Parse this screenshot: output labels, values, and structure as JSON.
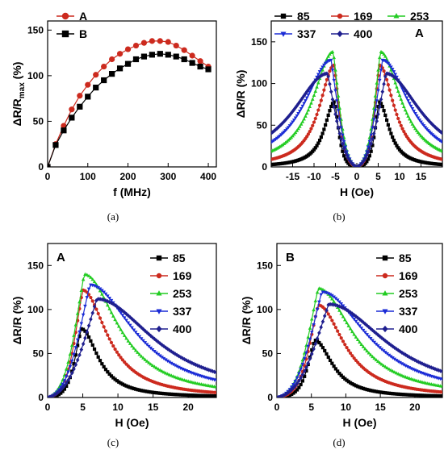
{
  "chart_data": [
    {
      "type": "line",
      "caption": "(a)",
      "xlabel": "f (MHz)",
      "ylabel_main": "ΔR/R",
      "ylabel_sub": "max",
      "ylabel_tail": " (%)",
      "xlim": [
        0,
        420
      ],
      "ylim": [
        0,
        160
      ],
      "xticks": [
        0,
        100,
        200,
        300,
        400
      ],
      "yticks": [
        0,
        50,
        100,
        150
      ],
      "legend_position": "top-left",
      "series": [
        {
          "name": "A",
          "color": "#cc2a1e",
          "marker": "circle",
          "x": [
            0,
            20,
            40,
            60,
            80,
            100,
            120,
            140,
            160,
            180,
            200,
            220,
            240,
            260,
            280,
            300,
            320,
            340,
            360,
            380,
            400
          ],
          "y": [
            0,
            25,
            45,
            63,
            78,
            90,
            101,
            110,
            118,
            124,
            129,
            133,
            136,
            138,
            138,
            137,
            133,
            128,
            122,
            116,
            110
          ]
        },
        {
          "name": "B",
          "color": "#000000",
          "marker": "square",
          "x": [
            0,
            20,
            40,
            60,
            80,
            100,
            120,
            140,
            160,
            180,
            200,
            220,
            240,
            260,
            280,
            300,
            320,
            340,
            360,
            380,
            400
          ],
          "y": [
            0,
            24,
            40,
            54,
            66,
            77,
            87,
            95,
            102,
            108,
            113,
            118,
            121,
            123,
            124,
            123,
            121,
            118,
            114,
            110,
            107
          ]
        }
      ]
    },
    {
      "type": "line",
      "caption": "(b)",
      "panel_tag": "A",
      "xlabel": "H (Oe)",
      "ylabel": "ΔR/R (%)",
      "xlim": [
        -20,
        20
      ],
      "ylim": [
        0,
        175
      ],
      "xticks": [
        -15,
        -10,
        -5,
        0,
        5,
        10,
        15
      ],
      "yticks": [
        0,
        50,
        100,
        150
      ],
      "legend_position": "top",
      "series": [
        {
          "name": "85",
          "color": "#000000",
          "marker": "square",
          "peak_H": 5.2,
          "peak_value": 78,
          "width": 1.8
        },
        {
          "name": "169",
          "color": "#cc2a1e",
          "marker": "circle",
          "peak_H": 5.3,
          "peak_value": 122,
          "width": 2.6
        },
        {
          "name": "253",
          "color": "#22cc22",
          "marker": "triangle-up",
          "peak_H": 5.5,
          "peak_value": 138,
          "width": 3.6
        },
        {
          "name": "337",
          "color": "#1a2bd6",
          "marker": "triangle-down",
          "peak_H": 6.0,
          "peak_value": 128,
          "width": 4.8
        },
        {
          "name": "400",
          "color": "#1f1f8f",
          "marker": "diamond",
          "peak_H": 6.8,
          "peak_value": 112,
          "width": 6.2
        }
      ]
    },
    {
      "type": "line",
      "caption": "(c)",
      "panel_tag": "A",
      "xlabel": "H (Oe)",
      "ylabel": "ΔR/R (%)",
      "xlim": [
        0,
        24
      ],
      "ylim": [
        0,
        175
      ],
      "xticks": [
        0,
        5,
        10,
        15,
        20
      ],
      "yticks": [
        0,
        50,
        100,
        150
      ],
      "legend_position": "top-right",
      "series": [
        {
          "name": "85",
          "color": "#000000",
          "marker": "square",
          "peak_H": 4.8,
          "peak_value": 78,
          "width": 1.8
        },
        {
          "name": "169",
          "color": "#cc2a1e",
          "marker": "circle",
          "peak_H": 5.0,
          "peak_value": 122,
          "width": 2.6
        },
        {
          "name": "253",
          "color": "#22cc22",
          "marker": "triangle-up",
          "peak_H": 5.2,
          "peak_value": 140,
          "width": 3.6
        },
        {
          "name": "337",
          "color": "#1a2bd6",
          "marker": "triangle-down",
          "peak_H": 6.0,
          "peak_value": 128,
          "width": 4.8
        },
        {
          "name": "400",
          "color": "#1f1f8f",
          "marker": "diamond",
          "peak_H": 7.0,
          "peak_value": 112,
          "width": 6.2
        }
      ]
    },
    {
      "type": "line",
      "caption": "(d)",
      "panel_tag": "B",
      "xlabel": "H (Oe)",
      "ylabel": "ΔR/R (%)",
      "xlim": [
        0,
        24
      ],
      "ylim": [
        0,
        175
      ],
      "xticks": [
        0,
        5,
        10,
        15,
        20
      ],
      "yticks": [
        0,
        50,
        100,
        150
      ],
      "legend_position": "top-right",
      "series": [
        {
          "name": "85",
          "color": "#000000",
          "marker": "square",
          "peak_H": 5.5,
          "peak_value": 65,
          "width": 1.9
        },
        {
          "name": "169",
          "color": "#cc2a1e",
          "marker": "circle",
          "peak_H": 6.0,
          "peak_value": 105,
          "width": 2.8
        },
        {
          "name": "253",
          "color": "#22cc22",
          "marker": "triangle-up",
          "peak_H": 6.0,
          "peak_value": 124,
          "width": 3.8
        },
        {
          "name": "337",
          "color": "#1a2bd6",
          "marker": "triangle-down",
          "peak_H": 6.5,
          "peak_value": 120,
          "width": 5.0
        },
        {
          "name": "400",
          "color": "#1f1f8f",
          "marker": "diamond",
          "peak_H": 7.5,
          "peak_value": 106,
          "width": 6.4
        }
      ]
    }
  ]
}
